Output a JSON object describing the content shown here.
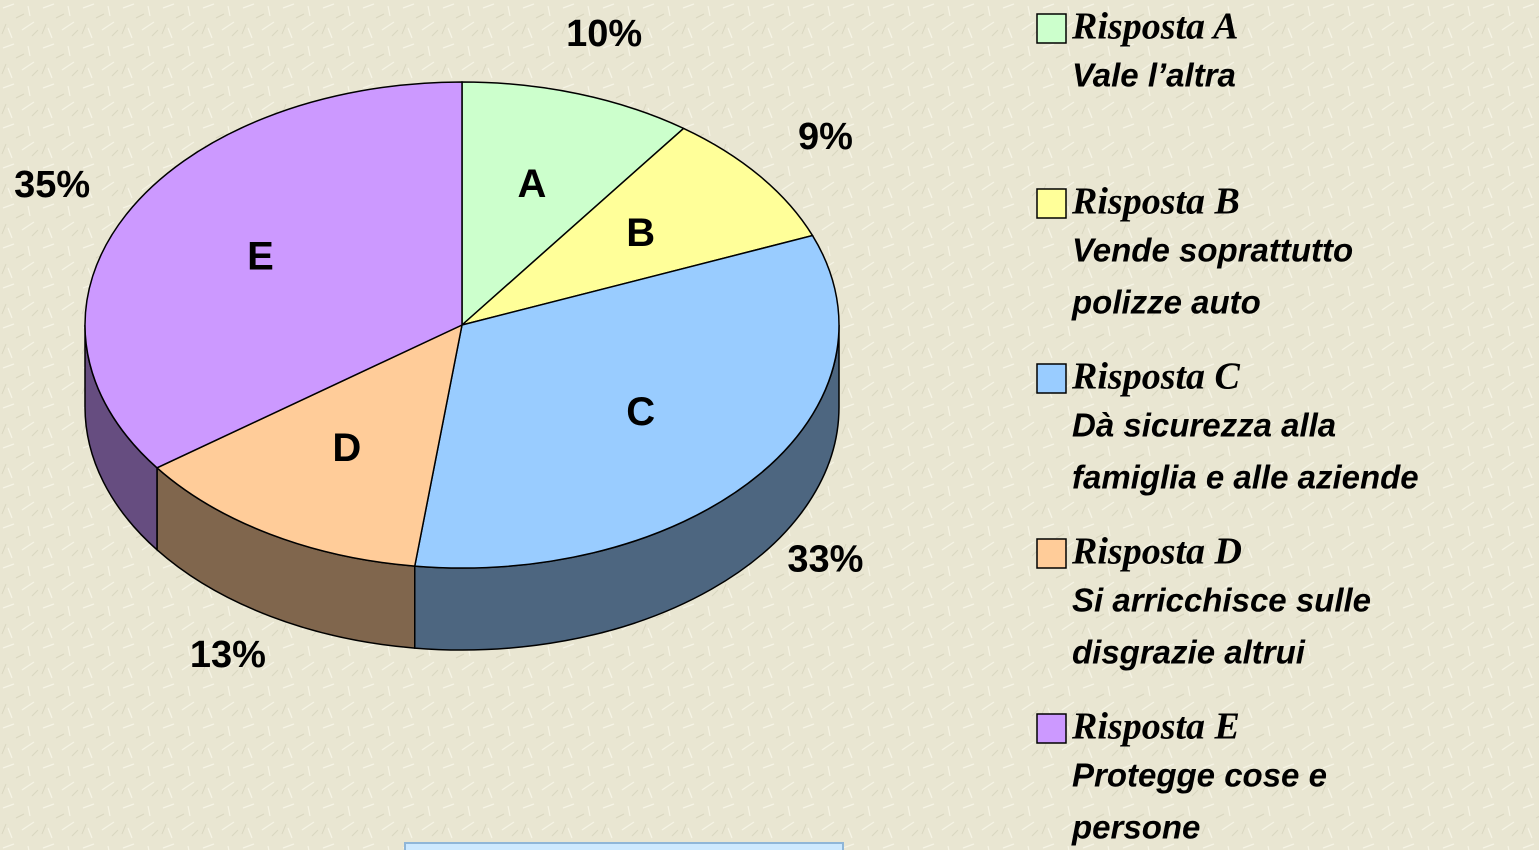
{
  "chart_data": {
    "type": "pie3d",
    "categories": [
      "A",
      "B",
      "C",
      "D",
      "E"
    ],
    "values": [
      10,
      9,
      33,
      13,
      35
    ],
    "value_labels": [
      "10%",
      "9%",
      "33%",
      "13%",
      "35%"
    ],
    "colors": [
      "#ccffcc",
      "#ffff99",
      "#99ccff",
      "#ffcc99",
      "#cc99ff"
    ],
    "legend": [
      {
        "name": "Risposta A",
        "description": [
          "Vale l’altra"
        ]
      },
      {
        "name": "Risposta B",
        "description": [
          "Vende soprattutto",
          "polizze auto"
        ]
      },
      {
        "name": "Risposta C",
        "description": [
          "Dà sicurezza alla",
          "famiglia e alle aziende"
        ]
      },
      {
        "name": "Risposta D",
        "description": [
          "Si arricchisce sulle",
          "disgrazie altrui"
        ]
      },
      {
        "name": "Risposta E",
        "description": [
          "Protegge cose e",
          "persone"
        ]
      }
    ]
  }
}
